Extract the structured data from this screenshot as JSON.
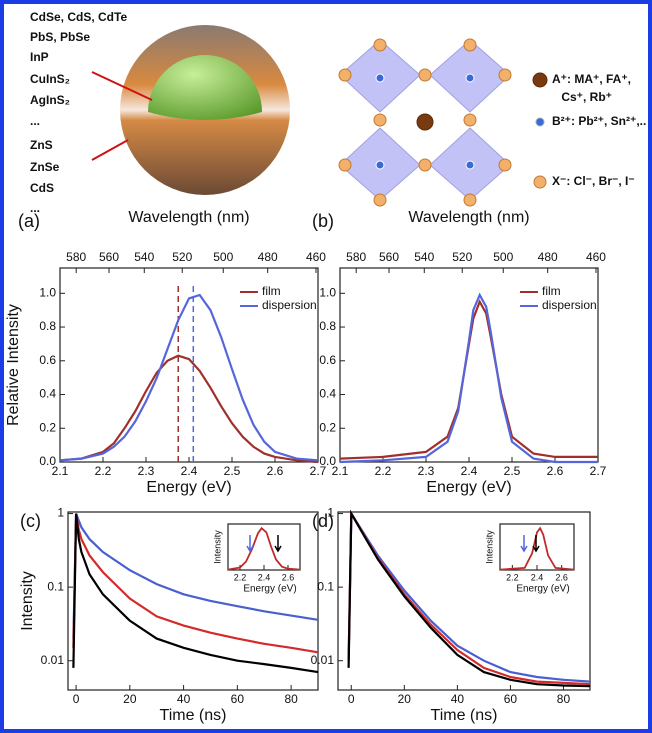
{
  "diagram": {
    "quantum_dot_labels": [
      "CdSe, CdS, CdTe",
      "PbS, PbSe",
      "InP",
      "CuInS₂",
      "AgInS₂",
      "...",
      "ZnS",
      "ZnSe",
      "CdS",
      "..."
    ],
    "perovskite_legend": [
      "A⁺: MA⁺, FA⁺,",
      "Cs⁺, Rb⁺",
      "B²⁺: Pb²⁺, Sn²⁺,..",
      "X⁻: Cl⁻, Br⁻, I⁻"
    ]
  },
  "chart_data": [
    {
      "type": "line",
      "panel_label": "(a)",
      "x2label": "Wavelength (nm)",
      "xlabel": "Energy (eV)",
      "ylabel": "Relative Intensity",
      "xlim": [
        2.1,
        2.7
      ],
      "xticks": [
        2.1,
        2.2,
        2.3,
        2.4,
        2.5,
        2.6,
        2.7
      ],
      "x2ticks": [
        580,
        560,
        540,
        520,
        500,
        480,
        460
      ],
      "ylim": [
        0,
        1.15
      ],
      "yticks": [
        {
          "value": 0,
          "label": "0.0"
        },
        0.2,
        0.4,
        0.6,
        0.8,
        {
          "value": 1,
          "label": "1.0"
        }
      ],
      "legend": "upper right",
      "vlines": [
        {
          "value": 2.375,
          "color": "#a0302a"
        },
        {
          "value": 2.41,
          "color": "#5566dd"
        }
      ],
      "x": [
        2.1,
        2.15,
        2.2,
        2.225,
        2.25,
        2.275,
        2.3,
        2.325,
        2.35,
        2.375,
        2.4,
        2.425,
        2.45,
        2.475,
        2.5,
        2.525,
        2.55,
        2.575,
        2.6,
        2.65,
        2.7
      ],
      "series": [
        {
          "name": "film",
          "color": "#a0302a",
          "values": [
            0.01,
            0.02,
            0.06,
            0.11,
            0.2,
            0.3,
            0.42,
            0.53,
            0.6,
            0.63,
            0.61,
            0.54,
            0.44,
            0.33,
            0.23,
            0.15,
            0.09,
            0.05,
            0.03,
            0.01,
            0
          ]
        },
        {
          "name": "dispersion",
          "color": "#5566dd",
          "values": [
            0.01,
            0.02,
            0.05,
            0.09,
            0.15,
            0.24,
            0.36,
            0.5,
            0.67,
            0.84,
            0.97,
            0.99,
            0.9,
            0.74,
            0.55,
            0.37,
            0.22,
            0.12,
            0.06,
            0.02,
            0.01
          ]
        }
      ]
    },
    {
      "type": "line",
      "panel_label": "(b)",
      "x2label": "Wavelength (nm)",
      "xlabel": "Energy (eV)",
      "xlim": [
        2.1,
        2.7
      ],
      "xticks": [
        2.1,
        2.2,
        2.3,
        2.4,
        2.5,
        2.6,
        2.7
      ],
      "x2ticks": [
        580,
        560,
        540,
        520,
        500,
        480,
        460
      ],
      "ylim": [
        0,
        1.15
      ],
      "yticks": [
        {
          "value": 0,
          "label": "0.0"
        },
        0.2,
        0.4,
        0.6,
        0.8,
        {
          "value": 1,
          "label": "1.0"
        }
      ],
      "legend": "upper right",
      "x": [
        2.1,
        2.2,
        2.3,
        2.35,
        2.375,
        2.4,
        2.41,
        2.425,
        2.44,
        2.45,
        2.475,
        2.5,
        2.55,
        2.6,
        2.7
      ],
      "series": [
        {
          "name": "film",
          "color": "#a0302a",
          "values": [
            0.02,
            0.03,
            0.06,
            0.15,
            0.32,
            0.7,
            0.85,
            0.95,
            0.88,
            0.75,
            0.4,
            0.15,
            0.05,
            0.03,
            0.03
          ]
        },
        {
          "name": "dispersion",
          "color": "#5566dd",
          "values": [
            0,
            0.01,
            0.03,
            0.12,
            0.3,
            0.72,
            0.9,
            0.99,
            0.92,
            0.78,
            0.38,
            0.12,
            0.02,
            0,
            0
          ]
        }
      ]
    },
    {
      "type": "line",
      "panel_label": "(c)",
      "xlabel": "Time (ns)",
      "ylabel": "Intensity",
      "ylog": true,
      "xlim": [
        -3,
        90
      ],
      "xticks": [
        0,
        20,
        40,
        60,
        80
      ],
      "ylim": [
        0.004,
        1.05
      ],
      "yticks": [
        0.01,
        0.1,
        1
      ],
      "x": [
        -1,
        0,
        1,
        2,
        5,
        10,
        20,
        30,
        40,
        50,
        60,
        70,
        80,
        90
      ],
      "series": [
        {
          "color": "#4a5fd0",
          "values": [
            0.02,
            1,
            0.8,
            0.65,
            0.45,
            0.3,
            0.17,
            0.11,
            0.08,
            0.065,
            0.055,
            0.047,
            0.041,
            0.036
          ]
        },
        {
          "color": "#d42a2a",
          "values": [
            0.015,
            1,
            0.6,
            0.45,
            0.27,
            0.16,
            0.07,
            0.04,
            0.03,
            0.024,
            0.02,
            0.017,
            0.015,
            0.013
          ]
        },
        {
          "color": "#000000",
          "values": [
            0.008,
            1,
            0.45,
            0.3,
            0.15,
            0.08,
            0.035,
            0.02,
            0.015,
            0.012,
            0.01,
            0.009,
            0.008,
            0.007
          ]
        }
      ]
    },
    {
      "type": "line",
      "panel_label": "(d)",
      "xlabel": "Time (ns)",
      "ylog": true,
      "xlim": [
        -5,
        90
      ],
      "xticks": [
        0,
        20,
        40,
        60,
        80
      ],
      "ylim": [
        0.004,
        1.05
      ],
      "yticks": [
        0.01,
        0.1,
        1
      ],
      "x": [
        -1,
        0,
        5,
        10,
        20,
        30,
        40,
        50,
        60,
        70,
        80,
        90
      ],
      "series": [
        {
          "color": "#4a5fd0",
          "values": [
            0.01,
            1,
            0.52,
            0.27,
            0.09,
            0.035,
            0.016,
            0.01,
            0.007,
            0.006,
            0.0055,
            0.0052
          ]
        },
        {
          "color": "#d42a2a",
          "values": [
            0.01,
            1,
            0.5,
            0.25,
            0.08,
            0.031,
            0.014,
            0.008,
            0.006,
            0.0052,
            0.005,
            0.0048
          ]
        },
        {
          "color": "#000000",
          "values": [
            0.008,
            1,
            0.49,
            0.24,
            0.075,
            0.028,
            0.012,
            0.007,
            0.0055,
            0.0048,
            0.0046,
            0.0045
          ]
        }
      ]
    },
    {
      "type": "line",
      "xlabel": "Energy (eV)",
      "ylabel": "Intensity",
      "xlim": [
        2.1,
        2.7
      ],
      "xticks": [
        2.2,
        2.4,
        2.6
      ],
      "ylim": [
        0,
        1.1
      ],
      "x": [
        2.1,
        2.2,
        2.25,
        2.3,
        2.35,
        2.38,
        2.42,
        2.46,
        2.5,
        2.55,
        2.6,
        2.7
      ],
      "series": [
        {
          "color": "#c02a2a",
          "values": [
            0.01,
            0.06,
            0.2,
            0.5,
            0.88,
            1,
            0.9,
            0.55,
            0.25,
            0.08,
            0.03,
            0.01
          ]
        }
      ]
    },
    {
      "type": "line",
      "xlabel": "Energy (eV)",
      "ylabel": "Intensity",
      "xlim": [
        2.1,
        2.7
      ],
      "xticks": [
        2.2,
        2.4,
        2.6
      ],
      "ylim": [
        0,
        1.1
      ],
      "x": [
        2.1,
        2.3,
        2.36,
        2.4,
        2.425,
        2.45,
        2.49,
        2.55,
        2.7
      ],
      "series": [
        {
          "color": "#c02a2a",
          "values": [
            0.01,
            0.05,
            0.4,
            0.9,
            1,
            0.85,
            0.35,
            0.05,
            0.01
          ]
        }
      ]
    }
  ]
}
